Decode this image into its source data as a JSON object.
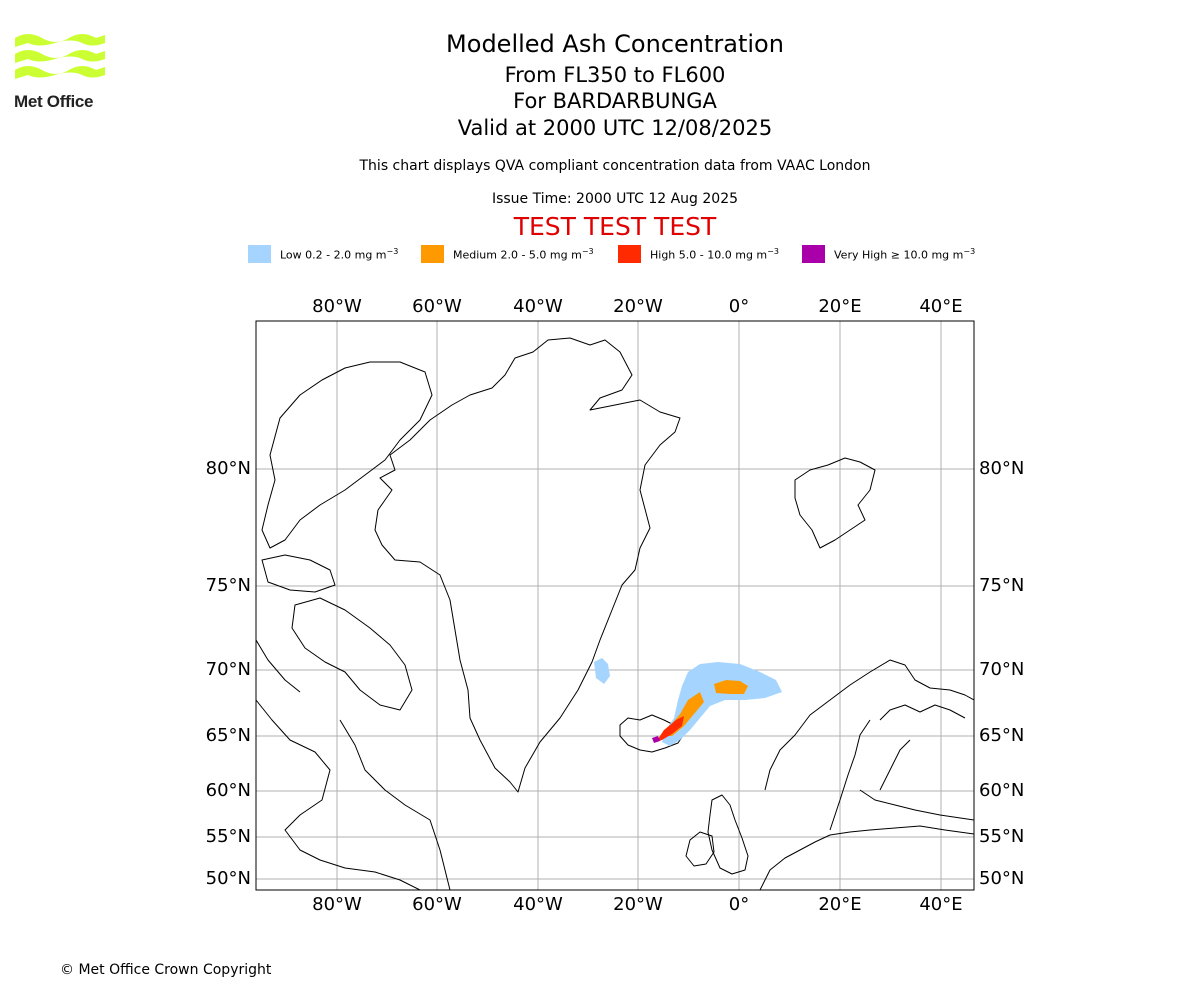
{
  "header": {
    "title": "Modelled Ash Concentration",
    "levels": "From FL350 to FL600",
    "volcano": "For BARDARBUNGA",
    "valid": "Valid at 2000 UTC 12/08/2025",
    "description": "This chart displays QVA compliant concentration data from VAAC London",
    "issue_time": "Issue Time: 2000 UTC 12 Aug 2025",
    "test_banner": "TEST TEST TEST"
  },
  "logo": {
    "text": "Met Office",
    "color": "#ccff33"
  },
  "legend": [
    {
      "label": "Low 0.2 - 2.0 mg m",
      "unit_exp": "−3",
      "color": "#a5d5ff"
    },
    {
      "label": "Medium 2.0 - 5.0 mg m",
      "unit_exp": "−3",
      "color": "#ff9900"
    },
    {
      "label": "High 5.0 - 10.0 mg m",
      "unit_exp": "−3",
      "color": "#ff2a00"
    },
    {
      "label": "Very High ≥ 10.0 mg m",
      "unit_exp": "−3",
      "color": "#aa00aa"
    }
  ],
  "axes": {
    "lon_labels": [
      "80°W",
      "60°W",
      "40°W",
      "20°W",
      "0°",
      "20°E",
      "40°E"
    ],
    "lat_labels": [
      "80°N",
      "75°N",
      "70°N",
      "65°N",
      "60°N",
      "55°N",
      "50°N"
    ]
  },
  "footer": {
    "copyright": "© Met Office Crown Copyright"
  }
}
